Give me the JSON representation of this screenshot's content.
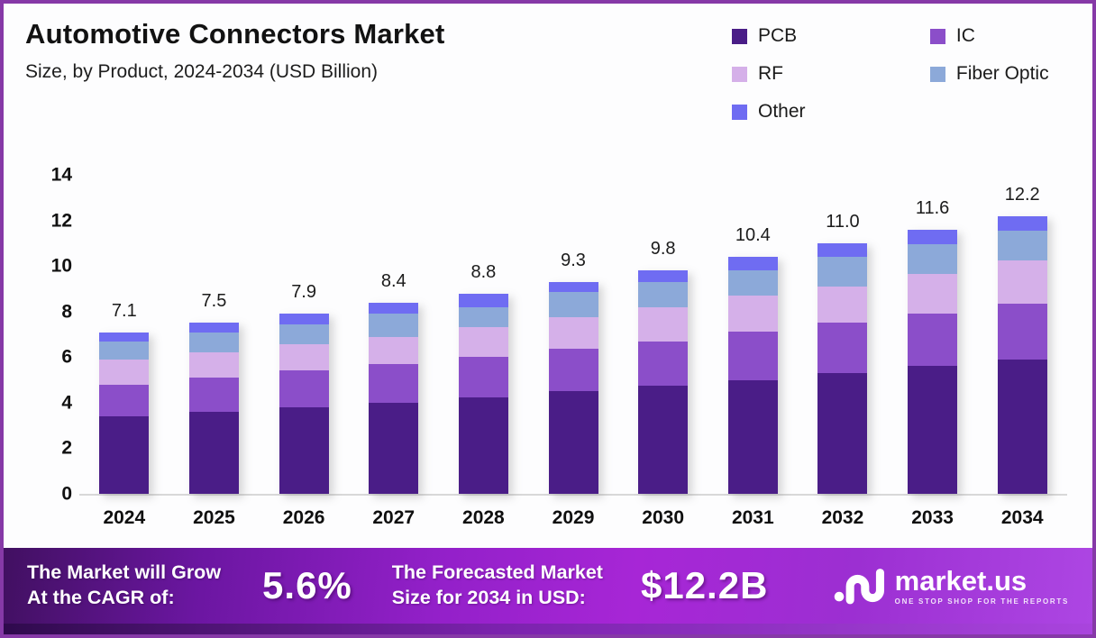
{
  "header": {
    "title": "Automotive Connectors Market",
    "subtitle": "Size, by Product, 2024-2034 (USD Billion)"
  },
  "chart_data": {
    "type": "bar",
    "stacked": true,
    "title": "Automotive Connectors Market Size, by Product, 2024-2034 (USD Billion)",
    "categories": [
      "2024",
      "2025",
      "2026",
      "2027",
      "2028",
      "2029",
      "2030",
      "2031",
      "2032",
      "2033",
      "2034"
    ],
    "series": [
      {
        "name": "PCB",
        "color": "#4a1d87",
        "values": [
          3.4,
          3.6,
          3.8,
          4.0,
          4.25,
          4.5,
          4.75,
          5.0,
          5.3,
          5.6,
          5.9
        ]
      },
      {
        "name": "IC",
        "color": "#8b4ec9",
        "values": [
          1.4,
          1.5,
          1.6,
          1.7,
          1.75,
          1.85,
          1.95,
          2.1,
          2.2,
          2.3,
          2.45
        ]
      },
      {
        "name": "RF",
        "color": "#d5b0e9",
        "values": [
          1.1,
          1.1,
          1.15,
          1.2,
          1.3,
          1.4,
          1.5,
          1.6,
          1.6,
          1.75,
          1.9
        ]
      },
      {
        "name": "Fiber Optic",
        "color": "#8ca9d9",
        "values": [
          0.8,
          0.9,
          0.9,
          1.0,
          0.9,
          1.1,
          1.1,
          1.1,
          1.3,
          1.3,
          1.3
        ]
      },
      {
        "name": "Other",
        "color": "#6f6cf2",
        "values": [
          0.4,
          0.4,
          0.45,
          0.5,
          0.6,
          0.45,
          0.5,
          0.6,
          0.6,
          0.65,
          0.65
        ]
      }
    ],
    "totals": [
      "7.1",
      "7.5",
      "7.9",
      "8.4",
      "8.8",
      "9.3",
      "9.8",
      "10.4",
      "11.0",
      "11.6",
      "12.2"
    ],
    "ylim": [
      0,
      14
    ],
    "yticks": [
      "0",
      "2",
      "4",
      "6",
      "8",
      "10",
      "12",
      "14"
    ],
    "xlabel": "",
    "ylabel": "",
    "grid": false,
    "legend_position": "top-right",
    "value_labels": "totals shown above each bar"
  },
  "banner": {
    "cagr_label_line1": "The Market will Grow",
    "cagr_label_line2": "At the CAGR of:",
    "cagr_value": "5.6%",
    "forecast_label_line1": "The Forecasted Market",
    "forecast_label_line2": "Size for 2034 in USD:",
    "forecast_value": "$12.2B",
    "logo_text": "market.us",
    "logo_tagline": "ONE STOP SHOP FOR THE REPORTS"
  },
  "colors": {
    "page_border": "#8639a7",
    "axis_line": "#d8d8d8",
    "banner_gradient_left": "#411061",
    "banner_gradient_mid": "#a726d6",
    "banner_gradient_right": "#ad46e3"
  }
}
